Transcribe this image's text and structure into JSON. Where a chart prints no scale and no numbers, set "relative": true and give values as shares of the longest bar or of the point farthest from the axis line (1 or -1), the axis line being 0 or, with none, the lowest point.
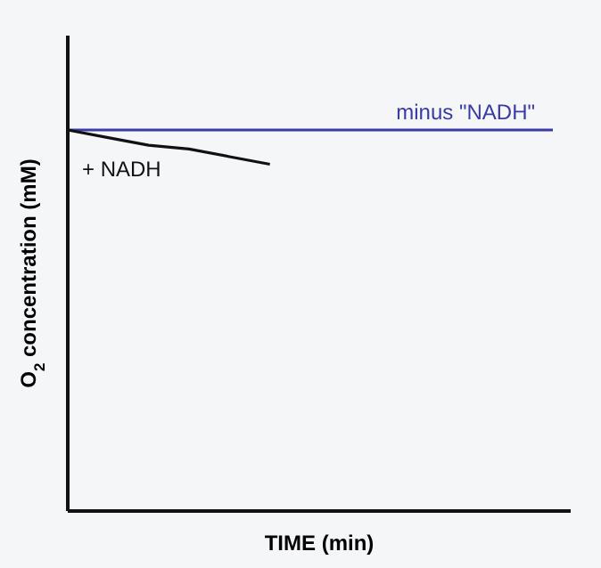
{
  "chart_data": {
    "type": "line",
    "xlabel": "TIME (min)",
    "ylabel": "O$_{2}$ concentration (mM)",
    "relative": true,
    "categories": [
      null,
      null,
      null,
      null,
      null,
      null,
      null,
      null,
      null,
      null,
      null,
      null,
      null
    ],
    "series": [
      {
        "name": "minus \"NADH\"",
        "color": "#3b3ba8",
        "values": [
          1,
          1,
          1,
          1,
          1,
          1,
          1,
          1,
          1,
          1,
          1,
          1,
          1
        ]
      },
      {
        "name": "+ NADH",
        "color": "#111111",
        "values": [
          1,
          0.98,
          0.96,
          0.95,
          0.93,
          0.91,
          null,
          null,
          null,
          null,
          null,
          null,
          null
        ]
      }
    ],
    "marker": "none"
  }
}
